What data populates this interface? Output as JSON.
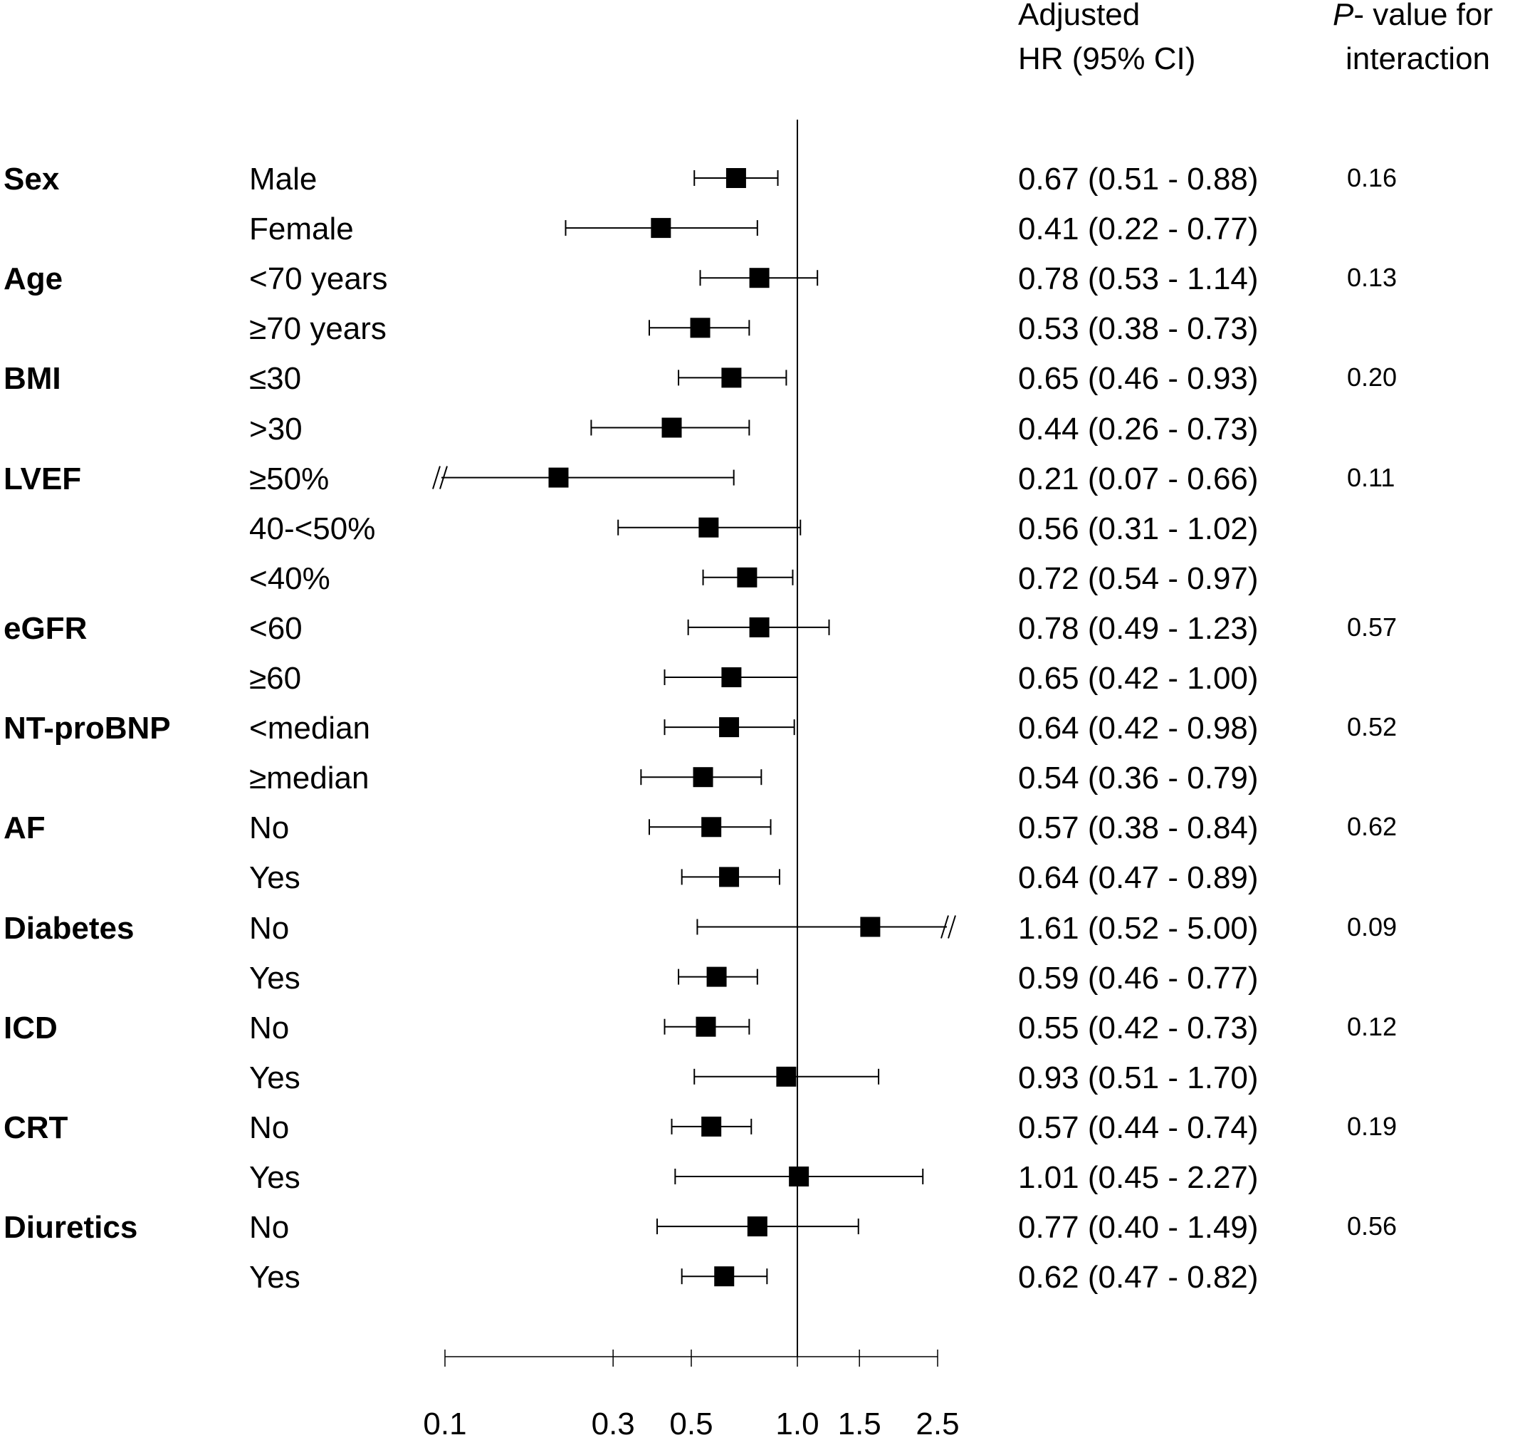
{
  "headers": {
    "hr_line1": "Adjusted",
    "hr_line2": "HR (95% CI)",
    "p_line1_italic": "P",
    "p_line1_rest": "- value for",
    "p_line2": "interaction"
  },
  "chart_data": {
    "type": "forest",
    "x_scale": "log",
    "xlim": [
      0.1,
      2.5
    ],
    "x_ticks": [
      0.1,
      0.3,
      0.5,
      1.0,
      1.5,
      2.5
    ],
    "x_tick_labels": [
      "0.1",
      "0.3",
      "0.5",
      "1.0",
      "1.5",
      "2.5"
    ],
    "reference_line": 1.0,
    "rows": [
      {
        "group": "Sex",
        "subgroup": "Male",
        "hr": 0.67,
        "lo": 0.51,
        "hi": 0.88,
        "label": "0.67 (0.51 - 0.88)",
        "p": "0.16"
      },
      {
        "group": "",
        "subgroup": "Female",
        "hr": 0.41,
        "lo": 0.22,
        "hi": 0.77,
        "label": "0.41 (0.22 - 0.77)",
        "p": ""
      },
      {
        "group": "Age",
        "subgroup": "<70 years",
        "hr": 0.78,
        "lo": 0.53,
        "hi": 1.14,
        "label": "0.78 (0.53 - 1.14)",
        "p": "0.13"
      },
      {
        "group": "",
        "subgroup": "≥70 years",
        "hr": 0.53,
        "lo": 0.38,
        "hi": 0.73,
        "label": "0.53 (0.38 - 0.73)",
        "p": ""
      },
      {
        "group": "BMI",
        "subgroup": "≤30",
        "hr": 0.65,
        "lo": 0.46,
        "hi": 0.93,
        "label": "0.65 (0.46 - 0.93)",
        "p": "0.20"
      },
      {
        "group": "",
        "subgroup": ">30",
        "hr": 0.44,
        "lo": 0.26,
        "hi": 0.73,
        "label": "0.44 (0.26 - 0.73)",
        "p": ""
      },
      {
        "group": "LVEF",
        "subgroup": "≥50%",
        "hr": 0.21,
        "lo": 0.07,
        "hi": 0.66,
        "label": "0.21 (0.07 - 0.66)",
        "p": "0.11",
        "truncated_low": true
      },
      {
        "group": "",
        "subgroup": "40-<50%",
        "hr": 0.56,
        "lo": 0.31,
        "hi": 1.02,
        "label": "0.56 (0.31 - 1.02)",
        "p": ""
      },
      {
        "group": "",
        "subgroup": "<40%",
        "hr": 0.72,
        "lo": 0.54,
        "hi": 0.97,
        "label": "0.72 (0.54 - 0.97)",
        "p": ""
      },
      {
        "group": "eGFR",
        "subgroup": "<60",
        "hr": 0.78,
        "lo": 0.49,
        "hi": 1.23,
        "label": "0.78 (0.49 - 1.23)",
        "p": "0.57"
      },
      {
        "group": "",
        "subgroup": "≥60",
        "hr": 0.65,
        "lo": 0.42,
        "hi": 1.0,
        "label": "0.65 (0.42 - 1.00)",
        "p": ""
      },
      {
        "group": "NT-proBNP",
        "subgroup": "<median",
        "hr": 0.64,
        "lo": 0.42,
        "hi": 0.98,
        "label": "0.64 (0.42 - 0.98)",
        "p": "0.52"
      },
      {
        "group": "",
        "subgroup": "≥median",
        "hr": 0.54,
        "lo": 0.36,
        "hi": 0.79,
        "label": "0.54 (0.36 - 0.79)",
        "p": ""
      },
      {
        "group": "AF",
        "subgroup": "No",
        "hr": 0.57,
        "lo": 0.38,
        "hi": 0.84,
        "label": "0.57 (0.38 - 0.84)",
        "p": "0.62"
      },
      {
        "group": "",
        "subgroup": "Yes",
        "hr": 0.64,
        "lo": 0.47,
        "hi": 0.89,
        "label": "0.64 (0.47 - 0.89)",
        "p": ""
      },
      {
        "group": "Diabetes",
        "subgroup": "No",
        "hr": 1.61,
        "lo": 0.52,
        "hi": 5.0,
        "label": "1.61 (0.52 - 5.00)",
        "p": "0.09",
        "truncated_high": true
      },
      {
        "group": "",
        "subgroup": "Yes",
        "hr": 0.59,
        "lo": 0.46,
        "hi": 0.77,
        "label": "0.59 (0.46 - 0.77)",
        "p": ""
      },
      {
        "group": "ICD",
        "subgroup": "No",
        "hr": 0.55,
        "lo": 0.42,
        "hi": 0.73,
        "label": "0.55 (0.42 - 0.73)",
        "p": "0.12"
      },
      {
        "group": "",
        "subgroup": "Yes",
        "hr": 0.93,
        "lo": 0.51,
        "hi": 1.7,
        "label": "0.93 (0.51 - 1.70)",
        "p": ""
      },
      {
        "group": "CRT",
        "subgroup": "No",
        "hr": 0.57,
        "lo": 0.44,
        "hi": 0.74,
        "label": "0.57 (0.44 - 0.74)",
        "p": "0.19"
      },
      {
        "group": "",
        "subgroup": "Yes",
        "hr": 1.01,
        "lo": 0.45,
        "hi": 2.27,
        "label": "1.01 (0.45 - 2.27)",
        "p": ""
      },
      {
        "group": "Diuretics",
        "subgroup": "No",
        "hr": 0.77,
        "lo": 0.4,
        "hi": 1.49,
        "label": "0.77 (0.40 - 1.49)",
        "p": "0.56"
      },
      {
        "group": "",
        "subgroup": "Yes",
        "hr": 0.62,
        "lo": 0.47,
        "hi": 0.82,
        "label": "0.62 (0.47 - 0.82)",
        "p": ""
      }
    ]
  }
}
